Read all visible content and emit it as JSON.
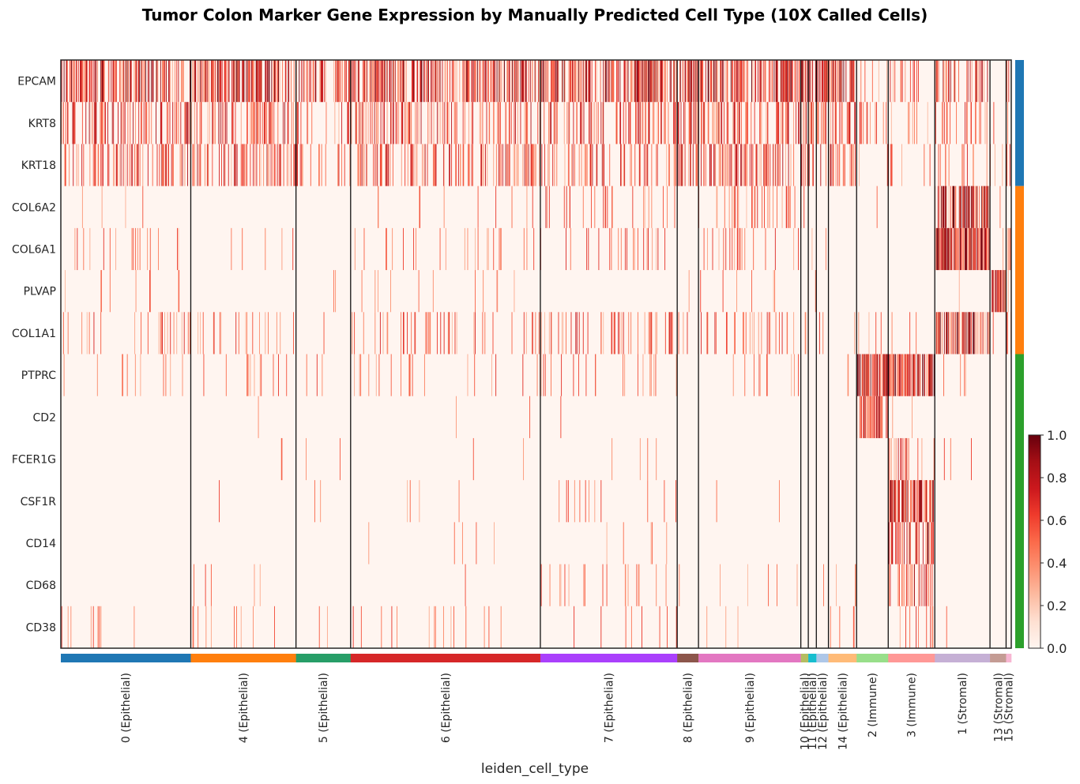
{
  "chart_data": {
    "type": "heatmap",
    "title": "Tumor Colon Marker Gene Expression by Manually Predicted Cell Type (10X Called Cells)",
    "xlabel": "leiden_cell_type",
    "ylabel": "",
    "genes": [
      "EPCAM",
      "KRT8",
      "KRT18",
      "COL6A2",
      "COL6A1",
      "PLVAP",
      "COL1A1",
      "PTPRC",
      "CD2",
      "FCER1G",
      "CSF1R",
      "CD14",
      "CD68",
      "CD38"
    ],
    "gene_groups": [
      {
        "genes": [
          "EPCAM",
          "KRT8",
          "KRT18"
        ],
        "color": "#1f77b4"
      },
      {
        "genes": [
          "COL6A2",
          "COL6A1",
          "PLVAP",
          "COL1A1"
        ],
        "color": "#ff7f0e"
      },
      {
        "genes": [
          "PTPRC",
          "CD2",
          "FCER1G",
          "CSF1R",
          "CD14",
          "CD68",
          "CD38"
        ],
        "color": "#2ca02c"
      }
    ],
    "cell_groups": [
      {
        "label": "0 (Epithelial)",
        "cells": 226,
        "color": "#1f77b4"
      },
      {
        "label": "4 (Epithelial)",
        "cells": 183,
        "color": "#ff7f0e"
      },
      {
        "label": "5 (Epithelial)",
        "cells": 95,
        "color": "#279e68"
      },
      {
        "label": "6 (Epithelial)",
        "cells": 330,
        "color": "#d62728"
      },
      {
        "label": "7 (Epithelial)",
        "cells": 238,
        "color": "#aa40fc"
      },
      {
        "label": "8 (Epithelial)",
        "cells": 37,
        "color": "#8c564b"
      },
      {
        "label": "9 (Epithelial)",
        "cells": 178,
        "color": "#e377c2"
      },
      {
        "label": "10 (Epithelial)",
        "cells": 13,
        "color": "#b5bd61"
      },
      {
        "label": "11 (Epithelial)",
        "cells": 14,
        "color": "#17becf"
      },
      {
        "label": "12 (Epithelial)",
        "cells": 21,
        "color": "#aec7e8"
      },
      {
        "label": "14 (Epithelial)",
        "cells": 49,
        "color": "#ffbb78"
      },
      {
        "label": "2 (Immune)",
        "cells": 55,
        "color": "#98df8a"
      },
      {
        "label": "3 (Immune)",
        "cells": 81,
        "color": "#ff9896"
      },
      {
        "label": "1 (Stromal)",
        "cells": 96,
        "color": "#c5b0d5"
      },
      {
        "label": "13 (Stromal)",
        "cells": 28,
        "color": "#c49c94"
      },
      {
        "label": "15 (Stromal)",
        "cells": 9,
        "color": "#f7b6d2"
      }
    ],
    "mean_expression_by_group": {
      "EPCAM": [
        0.55,
        0.55,
        0.45,
        0.55,
        0.55,
        0.65,
        0.6,
        0.5,
        0.5,
        0.55,
        0.55,
        0.15,
        0.15,
        0.35,
        0.05,
        0.3
      ],
      "KRT8": [
        0.35,
        0.35,
        0.2,
        0.3,
        0.3,
        0.4,
        0.35,
        0.3,
        0.35,
        0.35,
        0.35,
        0.1,
        0.1,
        0.2,
        0.05,
        0.3
      ],
      "KRT18": [
        0.3,
        0.35,
        0.15,
        0.3,
        0.3,
        0.35,
        0.3,
        0.3,
        0.3,
        0.3,
        0.3,
        0.05,
        0.1,
        0.15,
        0.05,
        0.2
      ],
      "COL6A2": [
        0.02,
        0.01,
        0.01,
        0.05,
        0.15,
        0.05,
        0.15,
        0.05,
        0.05,
        0.02,
        0.02,
        0.01,
        0.01,
        0.7,
        0.02,
        0.3
      ],
      "COL6A1": [
        0.05,
        0.02,
        0.01,
        0.05,
        0.1,
        0.05,
        0.12,
        0.05,
        0.05,
        0.02,
        0.02,
        0.01,
        0.01,
        0.85,
        0.03,
        0.3
      ],
      "PLVAP": [
        0.01,
        0.01,
        0.01,
        0.03,
        0.01,
        0.02,
        0.03,
        0.01,
        0.01,
        0.01,
        0.01,
        0.01,
        0.01,
        0.02,
        0.85,
        0.1
      ],
      "COL1A1": [
        0.12,
        0.08,
        0.05,
        0.15,
        0.2,
        0.1,
        0.15,
        0.05,
        0.05,
        0.05,
        0.05,
        0.05,
        0.02,
        0.6,
        0.05,
        0.2
      ],
      "PTPRC": [
        0.05,
        0.05,
        0.05,
        0.08,
        0.08,
        0.05,
        0.05,
        0.02,
        0.02,
        0.02,
        0.05,
        0.8,
        0.7,
        0.02,
        0.02,
        0.02
      ],
      "CD2": [
        0.0,
        0.01,
        0.0,
        0.01,
        0.01,
        0.02,
        0.0,
        0.0,
        0.0,
        0.0,
        0.0,
        0.45,
        0.02,
        0.0,
        0.0,
        0.0
      ],
      "FCER1G": [
        0.0,
        0.01,
        0.03,
        0.01,
        0.01,
        0.0,
        0.0,
        0.0,
        0.0,
        0.0,
        0.02,
        0.0,
        0.25,
        0.02,
        0.0,
        0.0
      ],
      "CSF1R": [
        0.0,
        0.01,
        0.02,
        0.01,
        0.03,
        0.0,
        0.01,
        0.0,
        0.0,
        0.0,
        0.0,
        0.0,
        0.6,
        0.0,
        0.0,
        0.0
      ],
      "CD14": [
        0.0,
        0.01,
        0.0,
        0.01,
        0.02,
        0.0,
        0.0,
        0.0,
        0.0,
        0.0,
        0.0,
        0.0,
        0.5,
        0.0,
        0.0,
        0.0
      ],
      "CD68": [
        0.0,
        0.01,
        0.0,
        0.01,
        0.05,
        0.02,
        0.02,
        0.0,
        0.0,
        0.05,
        0.05,
        0.0,
        0.4,
        0.0,
        0.0,
        0.0
      ],
      "CD38": [
        0.03,
        0.05,
        0.02,
        0.05,
        0.05,
        0.02,
        0.02,
        0.0,
        0.0,
        0.0,
        0.02,
        0.0,
        0.15,
        0.02,
        0.05,
        0.0
      ]
    },
    "colorbar": {
      "cmap": "Reds",
      "ticks": [
        0.0,
        0.2,
        0.4,
        0.6,
        0.8,
        1.0
      ],
      "vmin": 0.0,
      "vmax": 1.0
    },
    "grid": false
  }
}
